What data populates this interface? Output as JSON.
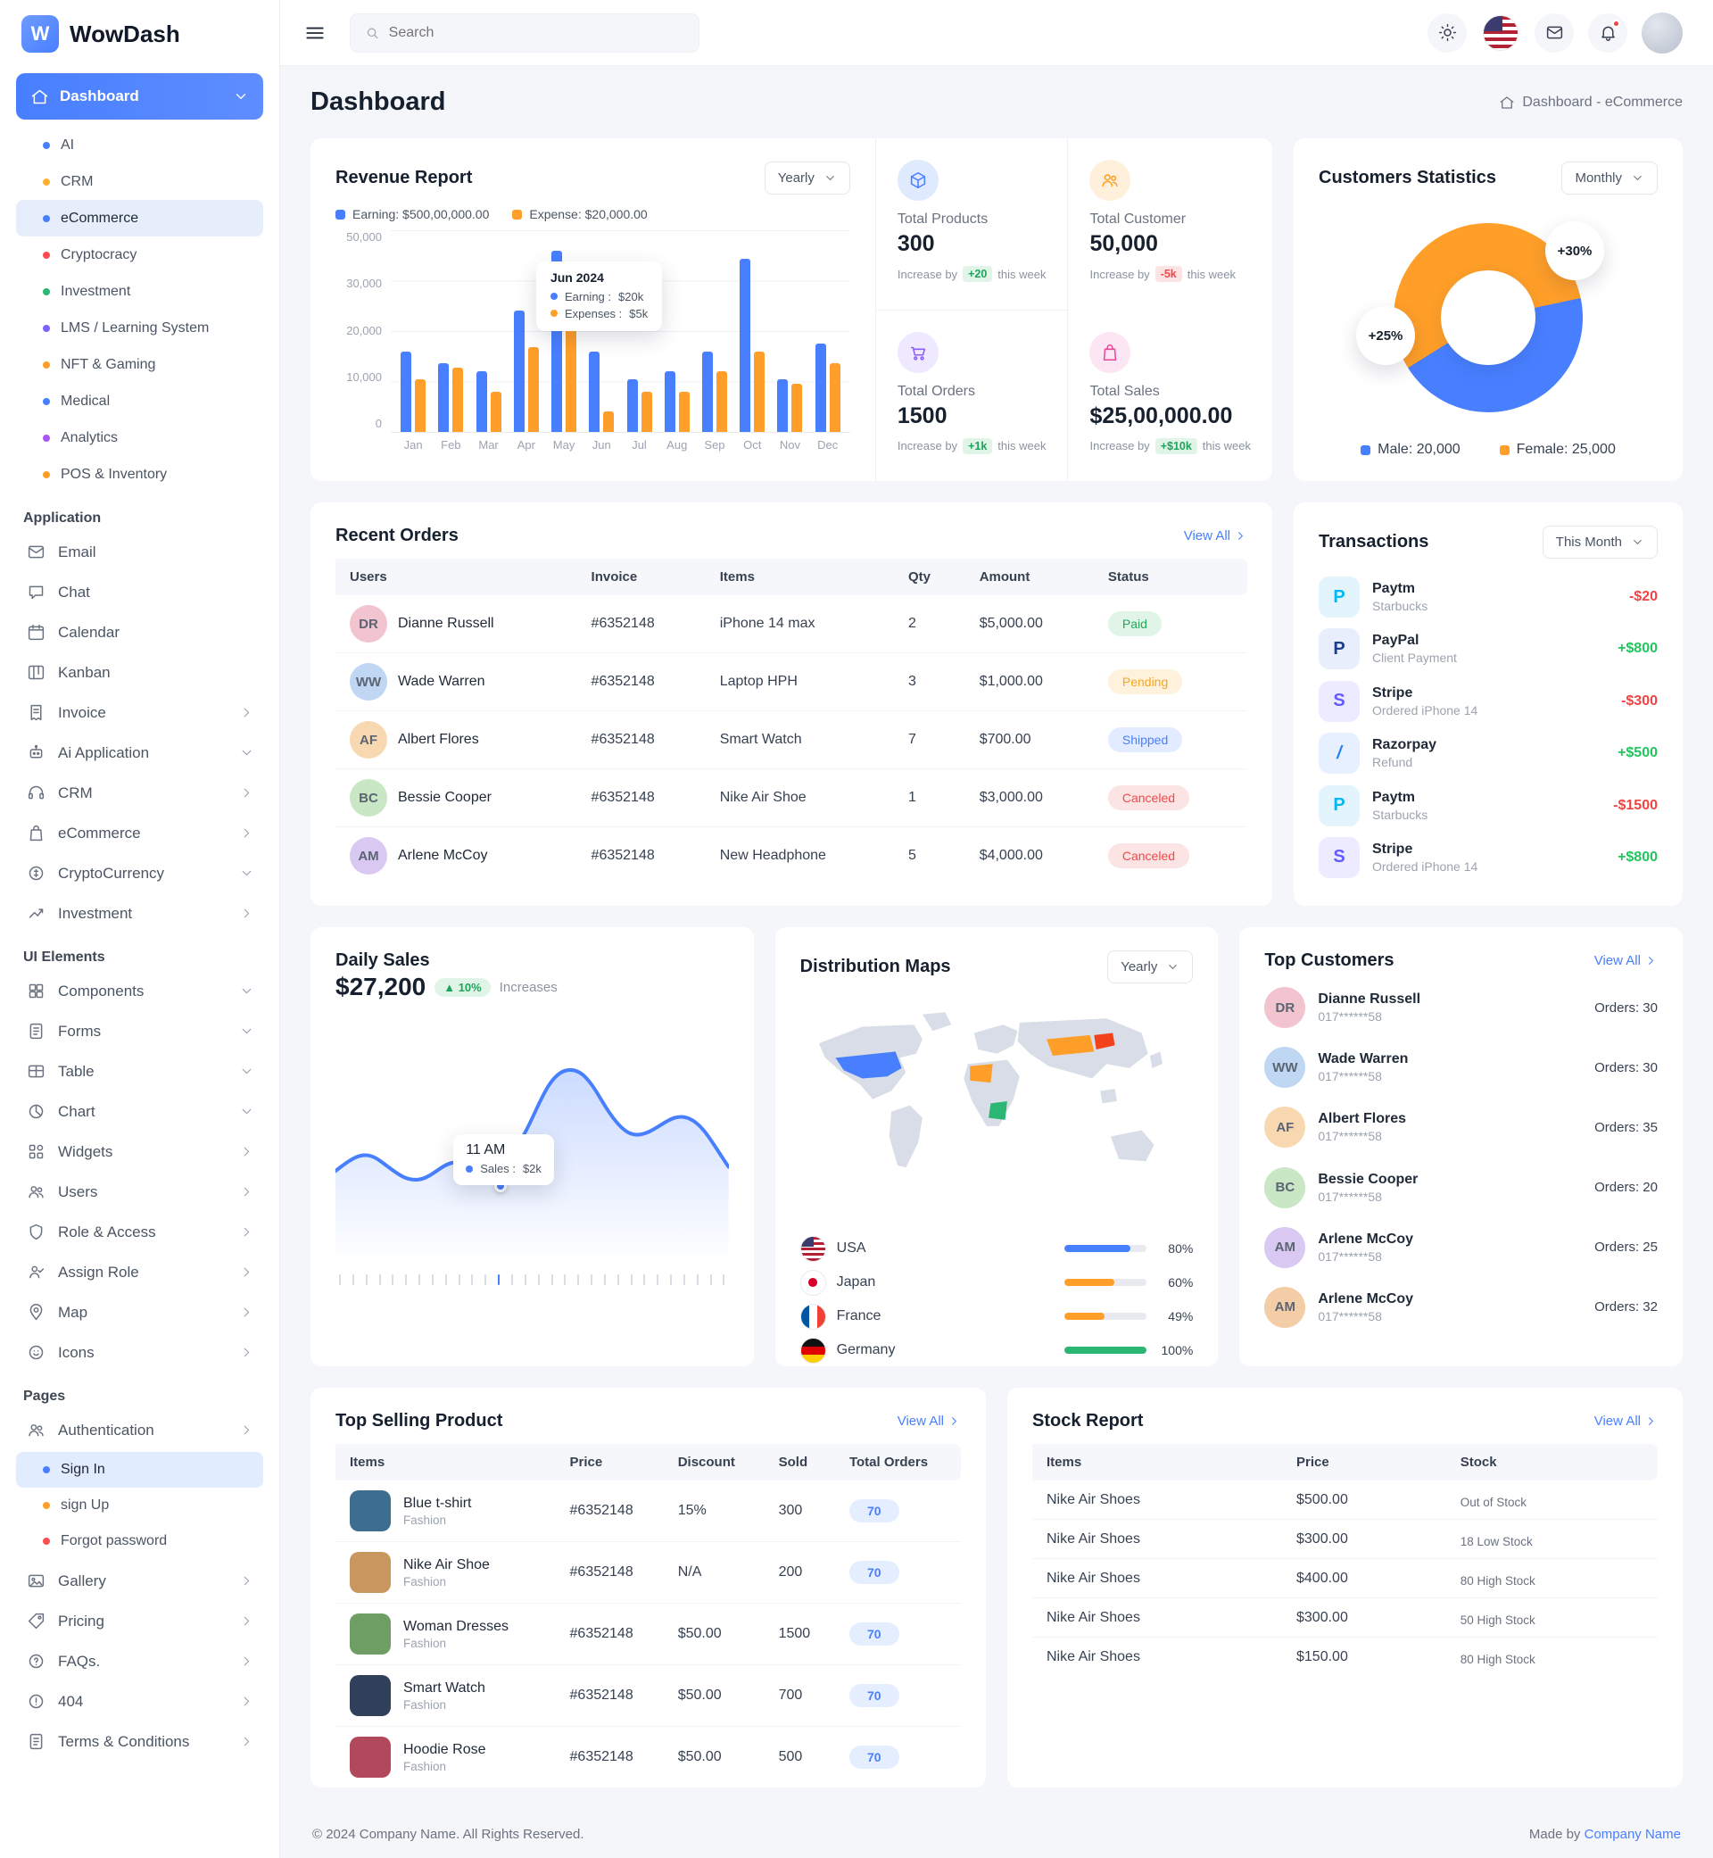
{
  "brand": {
    "name": "WowDash",
    "mark": "W"
  },
  "topbar": {
    "search_placeholder": "Search"
  },
  "page": {
    "title": "Dashboard",
    "breadcrumb": "Dashboard - eCommerce"
  },
  "sidebar": {
    "dashboard_label": "Dashboard",
    "dashboard_items": [
      {
        "label": "AI",
        "dot": "#487FFF"
      },
      {
        "label": "CRM",
        "dot": "#FFB02E"
      },
      {
        "label": "eCommerce",
        "dot": "#487FFF",
        "state": "active"
      },
      {
        "label": "Cryptocracy",
        "dot": "#FF4D4F"
      },
      {
        "label": "Investment",
        "dot": "#2BB673"
      },
      {
        "label": "LMS / Learning System",
        "dot": "#7B61FF"
      },
      {
        "label": "NFT & Gaming",
        "dot": "#FF9F29"
      },
      {
        "label": "Medical",
        "dot": "#487FFF"
      },
      {
        "label": "Analytics",
        "dot": "#A855F7"
      },
      {
        "label": "POS & Inventory",
        "dot": "#FF9F29"
      }
    ],
    "application_label": "Application",
    "application_items": [
      {
        "label": "Email",
        "icon": "envelope"
      },
      {
        "label": "Chat",
        "icon": "chat"
      },
      {
        "label": "Calendar",
        "icon": "calendar"
      },
      {
        "label": "Kanban",
        "icon": "kanban"
      },
      {
        "label": "Invoice",
        "icon": "invoice",
        "chevron": "chevron-right"
      },
      {
        "label": "Ai Application",
        "icon": "robot",
        "chevron": "chevron-down"
      },
      {
        "label": "CRM",
        "icon": "headset",
        "chevron": "chevron-right"
      },
      {
        "label": "eCommerce",
        "icon": "bag",
        "chevron": "chevron-right"
      },
      {
        "label": "CryptoCurrency",
        "icon": "coin",
        "chevron": "chevron-down"
      },
      {
        "label": "Investment",
        "icon": "trend",
        "chevron": "chevron-right"
      }
    ],
    "ui_label": "UI Elements",
    "ui_items": [
      {
        "label": "Components",
        "icon": "grid",
        "chevron": "chevron-down"
      },
      {
        "label": "Forms",
        "icon": "doc",
        "chevron": "chevron-down"
      },
      {
        "label": "Table",
        "icon": "table",
        "chevron": "chevron-down"
      },
      {
        "label": "Chart",
        "icon": "pie",
        "chevron": "chevron-down"
      },
      {
        "label": "Widgets",
        "icon": "widgets",
        "chevron": "chevron-right"
      },
      {
        "label": "Users",
        "icon": "users",
        "chevron": "chevron-right"
      },
      {
        "label": "Role & Access",
        "icon": "shield",
        "chevron": "chevron-right"
      },
      {
        "label": "Assign Role",
        "icon": "user-check",
        "chevron": "chevron-right"
      },
      {
        "label": "Map",
        "icon": "pin",
        "chevron": "chevron-right"
      },
      {
        "label": "Icons",
        "icon": "smile",
        "chevron": "chevron-right"
      }
    ],
    "pages_label": "Pages",
    "auth": {
      "label": "Authentication",
      "icon": "users",
      "chevron": "chevron-right"
    },
    "auth_items": [
      {
        "label": "Sign In",
        "dot": "#487FFF",
        "state": "active"
      },
      {
        "label": "sign Up",
        "dot": "#FF9F29"
      },
      {
        "label": "Forgot password",
        "dot": "#FF4D4F"
      }
    ],
    "pages_items": [
      {
        "label": "Gallery",
        "icon": "gallery",
        "chevron": "chevron-right"
      },
      {
        "label": "Pricing",
        "icon": "tag",
        "chevron": "chevron-right"
      },
      {
        "label": "FAQs.",
        "icon": "question",
        "chevron": "chevron-right"
      },
      {
        "label": "404",
        "icon": "alert",
        "chevron": "chevron-right"
      },
      {
        "label": "Terms & Conditions",
        "icon": "doc",
        "chevron": "chevron-right"
      }
    ]
  },
  "revenue": {
    "title": "Revenue Report",
    "range": "Yearly",
    "legend": [
      {
        "label": "Earning: $500,00,000.00",
        "color": "#487FFF"
      },
      {
        "label": "Expense: $20,000.00",
        "color": "#FF9F29"
      }
    ],
    "tooltip": {
      "title": "Jun 2024",
      "rows": [
        {
          "label": "Earning :",
          "value": "$20k",
          "color": "#487FFF"
        },
        {
          "label": "Expenses :",
          "value": "$5k",
          "color": "#FF9F29"
        }
      ]
    }
  },
  "stats": [
    {
      "title": "Total Products",
      "value": "300",
      "note_prefix": "Increase by",
      "badge": "+20",
      "note_suffix": "this week",
      "badge_type": "success",
      "icon": "cube",
      "theme": "blue"
    },
    {
      "title": "Total Customer",
      "value": "50,000",
      "note_prefix": "Increase by",
      "badge": "-5k",
      "note_suffix": "this week",
      "badge_type": "danger",
      "icon": "users",
      "theme": "orange"
    },
    {
      "title": "Total Orders",
      "value": "1500",
      "note_prefix": "Increase by",
      "badge": "+1k",
      "note_suffix": "this week",
      "badge_type": "success",
      "icon": "cart",
      "theme": "purple"
    },
    {
      "title": "Total Sales",
      "value": "$25,00,000.00",
      "note_prefix": "Increase by",
      "badge": "+$10k",
      "note_suffix": "this week",
      "badge_type": "success",
      "icon": "bag",
      "theme": "pink"
    }
  ],
  "customers_stats": {
    "title": "Customers Statistics",
    "range": "Monthly",
    "badge_a": "+30%",
    "badge_b": "+25%",
    "male_label": "Male: 20,000",
    "female_label": "Female: 25,000",
    "male_color": "#487FFF",
    "female_color": "#FF9F29"
  },
  "recent_orders": {
    "title": "Recent Orders",
    "view_all": "View All",
    "headers": [
      "Users",
      "Invoice",
      "Items",
      "Qty",
      "Amount",
      "Status"
    ],
    "rows": [
      {
        "user": "Dianne Russell",
        "invoice": "#6352148",
        "item": "iPhone 14 max",
        "qty": "2",
        "amount": "$5,000.00",
        "status": "Paid"
      },
      {
        "user": "Wade Warren",
        "invoice": "#6352148",
        "item": "Laptop HPH",
        "qty": "3",
        "amount": "$1,000.00",
        "status": "Pending"
      },
      {
        "user": "Albert Flores",
        "invoice": "#6352148",
        "item": "Smart Watch",
        "qty": "7",
        "amount": "$700.00",
        "status": "Shipped"
      },
      {
        "user": "Bessie Cooper",
        "invoice": "#6352148",
        "item": "Nike Air Shoe",
        "qty": "1",
        "amount": "$3,000.00",
        "status": "Canceled"
      },
      {
        "user": "Arlene McCoy",
        "invoice": "#6352148",
        "item": "New Headphone",
        "qty": "5",
        "amount": "$4,000.00",
        "status": "Canceled"
      }
    ]
  },
  "transactions": {
    "title": "Transactions",
    "range": "This Month",
    "rows": [
      {
        "name": "Paytm",
        "sub": "Starbucks",
        "amount": "-$20",
        "brand": "paytm",
        "initial": "P"
      },
      {
        "name": "PayPal",
        "sub": "Client Payment",
        "amount": "+$800",
        "brand": "paypal",
        "initial": "P"
      },
      {
        "name": "Stripe",
        "sub": "Ordered iPhone 14",
        "amount": "-$300",
        "brand": "stripe",
        "initial": "S"
      },
      {
        "name": "Razorpay",
        "sub": "Refund",
        "amount": "+$500",
        "brand": "razorpay",
        "initial": "/"
      },
      {
        "name": "Paytm",
        "sub": "Starbucks",
        "amount": "-$1500",
        "brand": "paytm",
        "initial": "P"
      },
      {
        "name": "Stripe",
        "sub": "Ordered iPhone 14",
        "amount": "+$800",
        "brand": "stripe",
        "initial": "S"
      }
    ]
  },
  "daily_sales": {
    "title": "Daily Sales",
    "value": "$27,200",
    "badge": "10%",
    "note": "Increases",
    "tooltip_title": "11 AM",
    "tooltip_label": "Sales :",
    "tooltip_value": "$2k"
  },
  "distribution": {
    "title": "Distribution Maps",
    "range": "Yearly",
    "countries": [
      {
        "name": "USA",
        "flag": "usa",
        "pct": "80%",
        "color": "#487FFF"
      },
      {
        "name": "Japan",
        "flag": "japan",
        "pct": "60%",
        "color": "#FF9F29"
      },
      {
        "name": "France",
        "flag": "france",
        "pct": "49%",
        "color": "#FF9F29"
      },
      {
        "name": "Germany",
        "flag": "germany",
        "pct": "100%",
        "color": "#2BB673"
      }
    ]
  },
  "top_customers": {
    "title": "Top Customers",
    "view_all": "View All",
    "rows": [
      {
        "name": "Dianne Russell",
        "phone": "017******58",
        "orders": "Orders: 30"
      },
      {
        "name": "Wade Warren",
        "phone": "017******58",
        "orders": "Orders: 30"
      },
      {
        "name": "Albert Flores",
        "phone": "017******58",
        "orders": "Orders: 35"
      },
      {
        "name": "Bessie Cooper",
        "phone": "017******58",
        "orders": "Orders: 20"
      },
      {
        "name": "Arlene McCoy",
        "phone": "017******58",
        "orders": "Orders: 25"
      },
      {
        "name": "Arlene McCoy",
        "phone": "017******58",
        "orders": "Orders: 32"
      }
    ]
  },
  "top_selling": {
    "title": "Top Selling Product",
    "view_all": "View All",
    "headers": [
      "Items",
      "Price",
      "Discount",
      "Sold",
      "Total Orders"
    ],
    "rows": [
      {
        "name": "Blue t-shirt",
        "category": "Fashion",
        "price": "#6352148",
        "discount": "15%",
        "sold": "300",
        "orders": "70",
        "thumb": "#3D6E8F"
      },
      {
        "name": "Nike Air Shoe",
        "category": "Fashion",
        "price": "#6352148",
        "discount": "N/A",
        "sold": "200",
        "orders": "70",
        "thumb": "#C9965F"
      },
      {
        "name": "Woman Dresses",
        "category": "Fashion",
        "price": "#6352148",
        "discount": "$50.00",
        "sold": "1500",
        "orders": "70",
        "thumb": "#6E9E63"
      },
      {
        "name": "Smart Watch",
        "category": "Fashion",
        "price": "#6352148",
        "discount": "$50.00",
        "sold": "700",
        "orders": "70",
        "thumb": "#30405A"
      },
      {
        "name": "Hoodie Rose",
        "category": "Fashion",
        "price": "#6352148",
        "discount": "$50.00",
        "sold": "500",
        "orders": "70",
        "thumb": "#B2485C"
      }
    ]
  },
  "stock_report": {
    "title": "Stock Report",
    "view_all": "View All",
    "headers": [
      "Items",
      "Price",
      "Stock"
    ],
    "rows": [
      {
        "name": "Nike Air Shoes",
        "price": "$500.00",
        "stock": "Out of Stock",
        "pct": "6%",
        "color": "#1B2431"
      },
      {
        "name": "Nike Air Shoes",
        "price": "$300.00",
        "stock": "18 Low Stock",
        "pct": "20%",
        "color": "#FF9F29"
      },
      {
        "name": "Nike Air Shoes",
        "price": "$400.00",
        "stock": "80 High Stock",
        "pct": "65%",
        "color": "#2BB673"
      },
      {
        "name": "Nike Air Shoes",
        "price": "$300.00",
        "stock": "50 High Stock",
        "pct": "50%",
        "color": "#2BB673"
      },
      {
        "name": "Nike Air Shoes",
        "price": "$150.00",
        "stock": "80 High Stock",
        "pct": "65%",
        "color": "#2BB673"
      }
    ]
  },
  "footer": {
    "copyright": "© 2024 Company Name. All Rights Reserved.",
    "made_by": "Made by",
    "company": "Company Name"
  },
  "chart_data": [
    {
      "id": "revenue_report",
      "type": "bar",
      "title": "Revenue Report",
      "categories": [
        "Jan",
        "Feb",
        "Mar",
        "Apr",
        "May",
        "Jun",
        "Jul",
        "Aug",
        "Sep",
        "Oct",
        "Nov",
        "Dec"
      ],
      "series": [
        {
          "name": "Earning",
          "color": "#487FFF",
          "values": [
            20000,
            17000,
            15000,
            30000,
            45000,
            20000,
            13000,
            15000,
            20000,
            43000,
            13000,
            22000
          ]
        },
        {
          "name": "Expense",
          "color": "#FF9F29",
          "values": [
            13000,
            16000,
            10000,
            21000,
            27000,
            5000,
            10000,
            10000,
            15000,
            20000,
            12000,
            17000
          ]
        }
      ],
      "y_ticks": [
        "50,000",
        "30,000",
        "20,000",
        "10,000",
        "0"
      ],
      "ylim": [
        0,
        50000
      ],
      "legend_position": "top-left",
      "grid": true
    },
    {
      "id": "customers_statistics",
      "type": "pie",
      "title": "Customers Statistics",
      "series": [
        {
          "name": "Male",
          "value": 20000,
          "color": "#487FFF"
        },
        {
          "name": "Female",
          "value": 25000,
          "color": "#FF9F29"
        }
      ],
      "annotations": [
        "+30%",
        "+25%"
      ]
    },
    {
      "id": "daily_sales",
      "type": "area",
      "title": "Daily Sales",
      "tooltip": {
        "x": "11 AM",
        "label": "Sales",
        "value": "$2k"
      },
      "values_estimated_k": [
        1.4,
        1.6,
        1.5,
        1.3,
        1.4,
        1.5,
        2.0,
        2.8,
        2.6,
        1.9,
        1.6,
        1.8,
        1.3
      ],
      "color": "#487FFF"
    }
  ]
}
